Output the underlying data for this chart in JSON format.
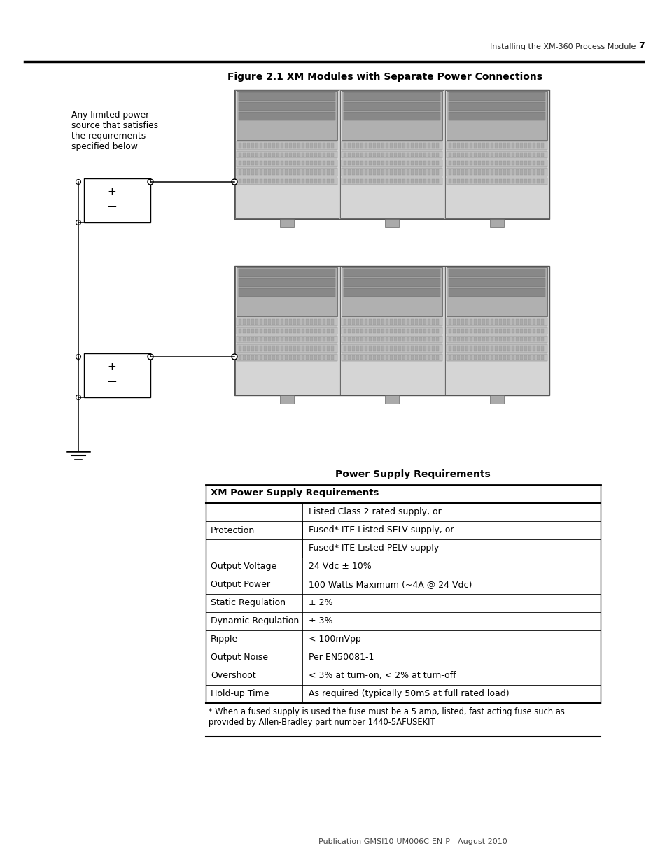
{
  "page_header_text": "Installing the XM-360 Process Module",
  "page_number": "7",
  "figure_title": "Figure 2.1 XM Modules with Separate Power Connections",
  "diagram_label": "Any limited power\nsource that satisfies\nthe requirements\nspecified below",
  "table_section_title": "Power Supply Requirements",
  "table_header": "XM Power Supply Requirements",
  "table_rows": [
    [
      "Protection",
      "Listed Class 2 rated supply, or"
    ],
    [
      "",
      "Fused* ITE Listed SELV supply, or"
    ],
    [
      "",
      "Fused* ITE Listed PELV supply"
    ],
    [
      "Output Voltage",
      "24 Vdc ± 10%"
    ],
    [
      "Output Power",
      "100 Watts Maximum (~4A @ 24 Vdc)"
    ],
    [
      "Static Regulation",
      "± 2%"
    ],
    [
      "Dynamic Regulation",
      "± 3%"
    ],
    [
      "Ripple",
      "< 100mVpp"
    ],
    [
      "Output Noise",
      "Per EN50081-1"
    ],
    [
      "Overshoot",
      "< 3% at turn-on, < 2% at turn-off"
    ],
    [
      "Hold-up Time",
      "As required (typically 50mS at full rated load)"
    ]
  ],
  "table_footnote": "* When a fused supply is used the fuse must be a 5 amp, listed, fast acting fuse such as\nprovided by Allen-Bradley part number 1440-5AFUSEKIT",
  "footer_text": "Publication GMSI10-UM006C-EN-P - August 2010",
  "background_color": "#ffffff"
}
